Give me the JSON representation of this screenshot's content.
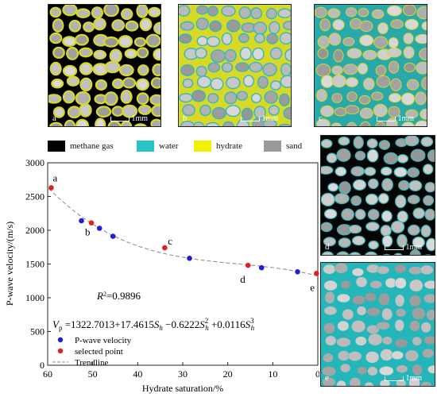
{
  "micro_images": [
    {
      "letter": "a",
      "scale": "1mm"
    },
    {
      "letter": "b",
      "scale": "1mm"
    },
    {
      "letter": "c",
      "scale": "1mm"
    },
    {
      "letter": "d",
      "scale": "1mm"
    },
    {
      "letter": "e",
      "scale": "1mm"
    }
  ],
  "phase_legend": [
    {
      "label": "methane gas",
      "color": "#000000"
    },
    {
      "label": "water",
      "color": "#27c3c8"
    },
    {
      "label": "hydrate",
      "color": "#f2f200"
    },
    {
      "label": "sand",
      "color": "#9a9a9a"
    }
  ],
  "chart_data": {
    "type": "scatter",
    "xlabel": "Hydrate saturation/%",
    "ylabel": "P-wave velocity/(m/s)",
    "xlim": [
      60,
      0
    ],
    "ylim": [
      0,
      3000
    ],
    "x_ticks": [
      60,
      50,
      40,
      30,
      20,
      10,
      0
    ],
    "y_ticks": [
      0,
      500,
      1000,
      1500,
      2000,
      2500,
      3000
    ],
    "series": [
      {
        "name": "P-wave velocity",
        "color": "#1f1fd9",
        "x": [
          52.5,
          48.5,
          45.5,
          28.5,
          12.5,
          4.5
        ],
        "y": [
          2140,
          2030,
          1910,
          1585,
          1445,
          1385
        ]
      },
      {
        "name": "selected point",
        "color": "#e02020",
        "x": [
          59.2,
          50.3,
          34,
          15.5,
          0.3
        ],
        "y": [
          2630,
          2110,
          1740,
          1480,
          1360
        ]
      }
    ],
    "point_labels": [
      {
        "text": "a",
        "x": 59.2,
        "y": 2630
      },
      {
        "text": "b",
        "x": 50.3,
        "y": 2110
      },
      {
        "text": "c",
        "x": 34,
        "y": 1740
      },
      {
        "text": "d",
        "x": 15.5,
        "y": 1480
      },
      {
        "text": "e",
        "x": 0.3,
        "y": 1360
      }
    ],
    "trendline": {
      "name": "Trendline",
      "coefficients": [
        1322.7013,
        17.4615,
        -0.6222,
        0.0116
      ]
    },
    "r2_text": "=0.9896",
    "equation": {
      "lhs": "V",
      "lhs_sub": "p",
      "eq": " =1322.7013+17.4615",
      "t1": "S",
      "t1_sub": "h",
      "op2": " −0.6222",
      "t2": "S",
      "t2_sub": "h",
      "t2_sup": "2",
      "op3": " +0.0116",
      "t3": "S",
      "t3_sub": "h",
      "t3_sup": "3"
    },
    "r2_label": "R",
    "r2_sup": "2",
    "legend": [
      "P-wave velocity",
      "selected point",
      "Trendline"
    ]
  }
}
